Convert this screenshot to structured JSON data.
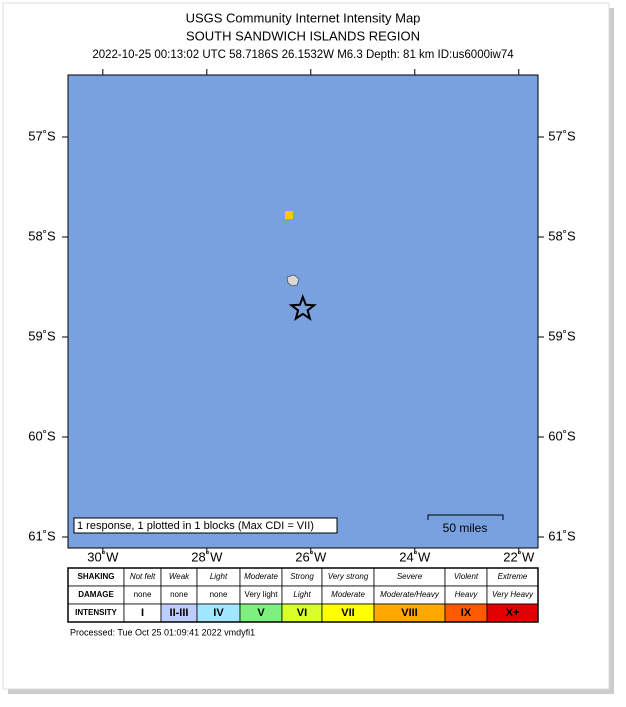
{
  "map": {
    "title": "USGS Community Internet Intensity Map",
    "subtitle": "SOUTH SANDWICH ISLANDS REGION",
    "event_line": "2022-10-25 00:13:02 UTC 58.7186S 26.1532W M6.3 Depth: 81 km ID:us6000iw74",
    "xlim": [
      -30.67,
      -21.63
    ],
    "ylim": [
      -61.11,
      -56.38
    ],
    "yticks": [
      {
        "value": -57,
        "label": "57˚S"
      },
      {
        "value": -58,
        "label": "58˚S"
      },
      {
        "value": -59,
        "label": "59˚S"
      },
      {
        "value": -60,
        "label": "60˚S"
      },
      {
        "value": -61,
        "label": "61˚S"
      }
    ],
    "xticks": [
      {
        "value": -30,
        "label": "30˚W"
      },
      {
        "value": -28,
        "label": "28˚W"
      },
      {
        "value": -26,
        "label": "26˚W"
      },
      {
        "value": -24,
        "label": "24˚W"
      },
      {
        "value": -22,
        "label": "22˚W"
      }
    ],
    "water_color": "#79a1e0",
    "epicenter": {
      "lat": -58.7186,
      "lon": -26.1532
    },
    "blocks": [
      {
        "lat": -57.78,
        "lon": -26.42,
        "color": "#ffc800"
      }
    ],
    "response_note": "1 response, 1 plotted in 1 blocks (Max CDI = VII)",
    "scale_label": "50 miles"
  },
  "legend": {
    "rows": [
      {
        "label": "SHAKING",
        "cells": [
          "Not felt",
          "Weak",
          "Light",
          "Moderate",
          "Strong",
          "Very strong",
          "Severe",
          "Violent",
          "Extreme"
        ]
      },
      {
        "label": "DAMAGE",
        "cells": [
          "none",
          "none",
          "none",
          "Very light",
          "Light",
          "Moderate",
          "Moderate/Heavy",
          "Heavy",
          "Very Heavy"
        ]
      },
      {
        "label": "INTENSITY",
        "cells": [
          "I",
          "II-III",
          "IV",
          "V",
          "VI",
          "VII",
          "VIII",
          "IX",
          "X+"
        ]
      }
    ],
    "colors": [
      "#ffffff",
      "#bfccff",
      "#a0e6ff",
      "#7ef07e",
      "#d8ff2a",
      "#ffff00",
      "#ffa800",
      "#ff5a00",
      "#e00000"
    ]
  },
  "footer": "Processed: Tue Oct 25 01:09:41 2022 vmdyfi1"
}
